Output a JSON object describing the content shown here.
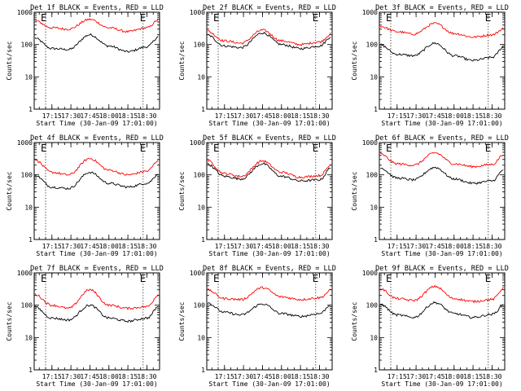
{
  "chart_data": {
    "type": "line",
    "xlabel": "Start Time (30-Jan-09 17:01:00)",
    "ylabel": "Counts/sec",
    "xlim": [
      "17:01",
      "18:40"
    ],
    "x_ticks": [
      "17:15",
      "17:30",
      "17:45",
      "18:00",
      "18:15",
      "18:30"
    ],
    "y_scale": "log",
    "ylim": [
      1,
      1000
    ],
    "y_ticks": [
      "1",
      "10",
      "100",
      "1000"
    ],
    "grid": false,
    "eclipse_markers": {
      "label": "E",
      "times": [
        "17:10",
        "18:27"
      ]
    },
    "colors": {
      "events": "#000000",
      "lld": "#ff0000"
    },
    "time_points": [
      "17:01",
      "17:15",
      "17:28",
      "17:45",
      "18:00",
      "18:15",
      "18:30",
      "18:40"
    ],
    "panels": [
      {
        "title": "Det 1f BLACK = Events, RED = LLD",
        "series": [
          {
            "key": "events",
            "values": [
              160,
              75,
              70,
              200,
              90,
              60,
              85,
              180
            ]
          },
          {
            "key": "lld",
            "values": [
              550,
              330,
              300,
              600,
              330,
              250,
              330,
              600
            ]
          }
        ]
      },
      {
        "title": "Det 2f BLACK = Events, RED = LLD",
        "series": [
          {
            "key": "events",
            "values": [
              200,
              90,
              80,
              230,
              100,
              75,
              90,
              180
            ]
          },
          {
            "key": "lld",
            "values": [
              260,
              130,
              110,
              280,
              130,
              100,
              120,
              220
            ]
          }
        ]
      },
      {
        "title": "Det 3f BLACK = Events, RED = LLD",
        "series": [
          {
            "key": "events",
            "values": [
              100,
              50,
              45,
              110,
              45,
              32,
              40,
              90
            ]
          },
          {
            "key": "lld",
            "values": [
              370,
              250,
              210,
              450,
              220,
              170,
              200,
              320
            ]
          }
        ]
      },
      {
        "title": "Det 4f BLACK = Events, RED = LLD",
        "series": [
          {
            "key": "events",
            "values": [
              100,
              42,
              38,
              120,
              55,
              42,
              55,
              110
            ]
          },
          {
            "key": "lld",
            "values": [
              300,
              120,
              100,
              320,
              140,
              100,
              130,
              300
            ]
          }
        ]
      },
      {
        "title": "Det 5f BLACK = Events, RED = LLD",
        "series": [
          {
            "key": "events",
            "values": [
              220,
              90,
              75,
              220,
              90,
              65,
              70,
              180
            ]
          },
          {
            "key": "lld",
            "values": [
              280,
              110,
              90,
              270,
              120,
              85,
              95,
              210
            ]
          }
        ]
      },
      {
        "title": "Det 6f BLACK = Events, RED = LLD",
        "series": [
          {
            "key": "events",
            "values": [
              170,
              80,
              70,
              170,
              75,
              55,
              65,
              150
            ]
          },
          {
            "key": "lld",
            "values": [
              450,
              220,
              200,
              480,
              220,
              180,
              210,
              450
            ]
          }
        ]
      },
      {
        "title": "Det 7f BLACK = Events, RED = LLD",
        "series": [
          {
            "key": "events",
            "values": [
              90,
              40,
              35,
              100,
              40,
              32,
              40,
              95
            ]
          },
          {
            "key": "lld",
            "values": [
              220,
              100,
              80,
              300,
              100,
              80,
              90,
              220
            ]
          }
        ]
      },
      {
        "title": "Det 8f BLACK = Events, RED = LLD",
        "series": [
          {
            "key": "events",
            "values": [
              120,
              60,
              50,
              110,
              55,
              45,
              55,
              110
            ]
          },
          {
            "key": "lld",
            "values": [
              300,
              160,
              150,
              350,
              180,
              150,
              170,
              300
            ]
          }
        ]
      },
      {
        "title": "Det 9f BLACK = Events, RED = LLD",
        "series": [
          {
            "key": "events",
            "values": [
              110,
              50,
              42,
              120,
              55,
              42,
              52,
              105
            ]
          },
          {
            "key": "lld",
            "values": [
              330,
              160,
              140,
              380,
              160,
              130,
              150,
              350
            ]
          }
        ]
      }
    ]
  }
}
